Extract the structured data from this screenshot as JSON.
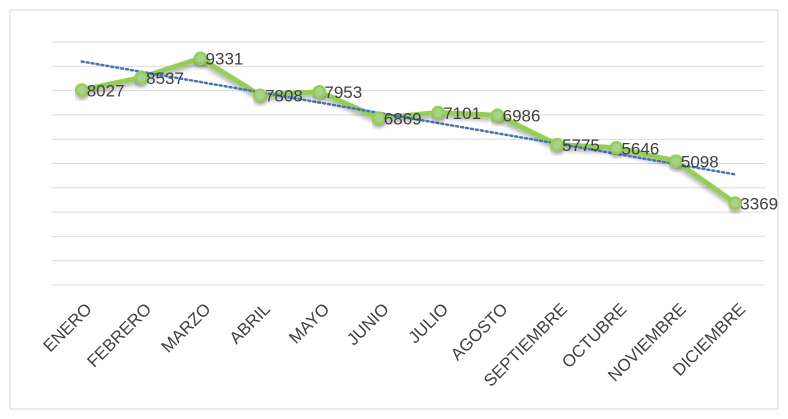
{
  "chart_data": {
    "type": "line",
    "categories": [
      "ENERO",
      "FEBRERO",
      "MARZO",
      "ABRIL",
      "MAYO",
      "JUNIO",
      "JULIO",
      "AGOSTO",
      "SEPTIEMBRE",
      "OCTUBRE",
      "NOVIEMBRE",
      "DICIEMBRE"
    ],
    "series": [
      {
        "color": "#92d050",
        "values": [
          8027,
          8537,
          9331,
          7808,
          7953,
          6869,
          7101,
          6986,
          5775,
          5646,
          5098,
          3369
        ]
      }
    ],
    "ylim": [
      0,
      10000
    ],
    "yticks": [
      0,
      1000,
      2000,
      3000,
      4000,
      5000,
      6000,
      7000,
      8000,
      9000,
      10000
    ],
    "grid": true,
    "trendline": {
      "type": "linear",
      "color": "#4472c4"
    }
  }
}
